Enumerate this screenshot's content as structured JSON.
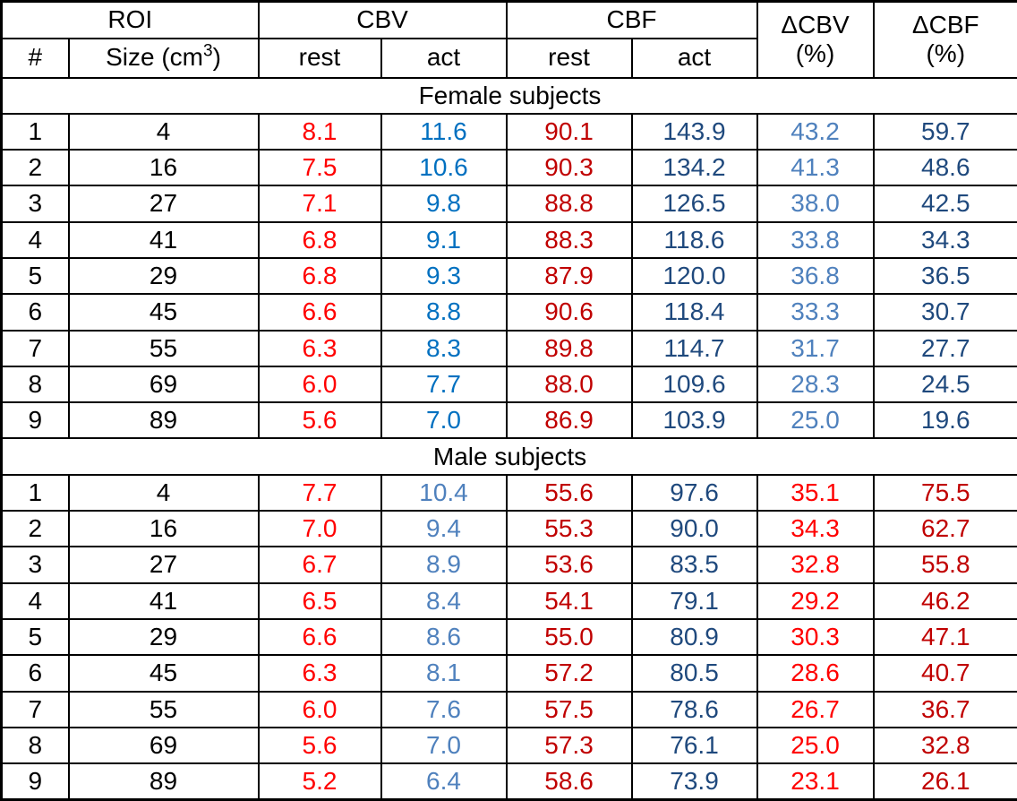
{
  "chart_data": {
    "type": "table",
    "header": {
      "roi": "ROI",
      "cbv": "CBV",
      "cbf": "CBF",
      "dcbv": "ΔCBV",
      "dcbf": "ΔCBF",
      "pct": "(%)",
      "num": "#",
      "size_prefix": "Size (cm",
      "size_sup": "3",
      "size_close": ")",
      "rest": "rest",
      "act": "act"
    },
    "colors": {
      "bright_red": "#FF0000",
      "dark_red": "#C00000",
      "vivid_blue": "#0070C0",
      "steel_blue": "#4F81BD",
      "dark_navy": "#1F497D",
      "text": "#000000",
      "border": "#000000",
      "background": "#FFFFFF"
    },
    "value_column_keys": [
      "cbv-rest",
      "cbv-act",
      "cbf-rest",
      "cbf-act",
      "delta-cbv",
      "delta-cbf"
    ],
    "sections": [
      {
        "title": "Female subjects",
        "value_colors": [
          "bright_red",
          "vivid_blue",
          "dark_red",
          "dark_navy",
          "steel_blue",
          "dark_navy"
        ],
        "rows": [
          {
            "num": "1",
            "size": "4",
            "values": [
              "8.1",
              "11.6",
              "90.1",
              "143.9",
              "43.2",
              "59.7"
            ]
          },
          {
            "num": "2",
            "size": "16",
            "values": [
              "7.5",
              "10.6",
              "90.3",
              "134.2",
              "41.3",
              "48.6"
            ]
          },
          {
            "num": "3",
            "size": "27",
            "values": [
              "7.1",
              "9.8",
              "88.8",
              "126.5",
              "38.0",
              "42.5"
            ]
          },
          {
            "num": "4",
            "size": "41",
            "values": [
              "6.8",
              "9.1",
              "88.3",
              "118.6",
              "33.8",
              "34.3"
            ]
          },
          {
            "num": "5",
            "size": "29",
            "values": [
              "6.8",
              "9.3",
              "87.9",
              "120.0",
              "36.8",
              "36.5"
            ]
          },
          {
            "num": "6",
            "size": "45",
            "values": [
              "6.6",
              "8.8",
              "90.6",
              "118.4",
              "33.3",
              "30.7"
            ]
          },
          {
            "num": "7",
            "size": "55",
            "values": [
              "6.3",
              "8.3",
              "89.8",
              "114.7",
              "31.7",
              "27.7"
            ]
          },
          {
            "num": "8",
            "size": "69",
            "values": [
              "6.0",
              "7.7",
              "88.0",
              "109.6",
              "28.3",
              "24.5"
            ]
          },
          {
            "num": "9",
            "size": "89",
            "values": [
              "5.6",
              "7.0",
              "86.9",
              "103.9",
              "25.0",
              "19.6"
            ]
          }
        ]
      },
      {
        "title": "Male subjects",
        "value_colors": [
          "bright_red",
          "steel_blue",
          "dark_red",
          "dark_navy",
          "bright_red",
          "dark_red"
        ],
        "rows": [
          {
            "num": "1",
            "size": "4",
            "values": [
              "7.7",
              "10.4",
              "55.6",
              "97.6",
              "35.1",
              "75.5"
            ]
          },
          {
            "num": "2",
            "size": "16",
            "values": [
              "7.0",
              "9.4",
              "55.3",
              "90.0",
              "34.3",
              "62.7"
            ]
          },
          {
            "num": "3",
            "size": "27",
            "values": [
              "6.7",
              "8.9",
              "53.6",
              "83.5",
              "32.8",
              "55.8"
            ]
          },
          {
            "num": "4",
            "size": "41",
            "values": [
              "6.5",
              "8.4",
              "54.1",
              "79.1",
              "29.2",
              "46.2"
            ]
          },
          {
            "num": "5",
            "size": "29",
            "values": [
              "6.6",
              "8.6",
              "55.0",
              "80.9",
              "30.3",
              "47.1"
            ]
          },
          {
            "num": "6",
            "size": "45",
            "values": [
              "6.3",
              "8.1",
              "57.2",
              "80.5",
              "28.6",
              "40.7"
            ]
          },
          {
            "num": "7",
            "size": "55",
            "values": [
              "6.0",
              "7.6",
              "57.5",
              "78.6",
              "26.7",
              "36.7"
            ]
          },
          {
            "num": "8",
            "size": "69",
            "values": [
              "5.6",
              "7.0",
              "57.3",
              "76.1",
              "25.0",
              "32.8"
            ]
          },
          {
            "num": "9",
            "size": "89",
            "values": [
              "5.2",
              "6.4",
              "58.6",
              "73.9",
              "23.1",
              "26.1"
            ]
          }
        ]
      }
    ]
  }
}
